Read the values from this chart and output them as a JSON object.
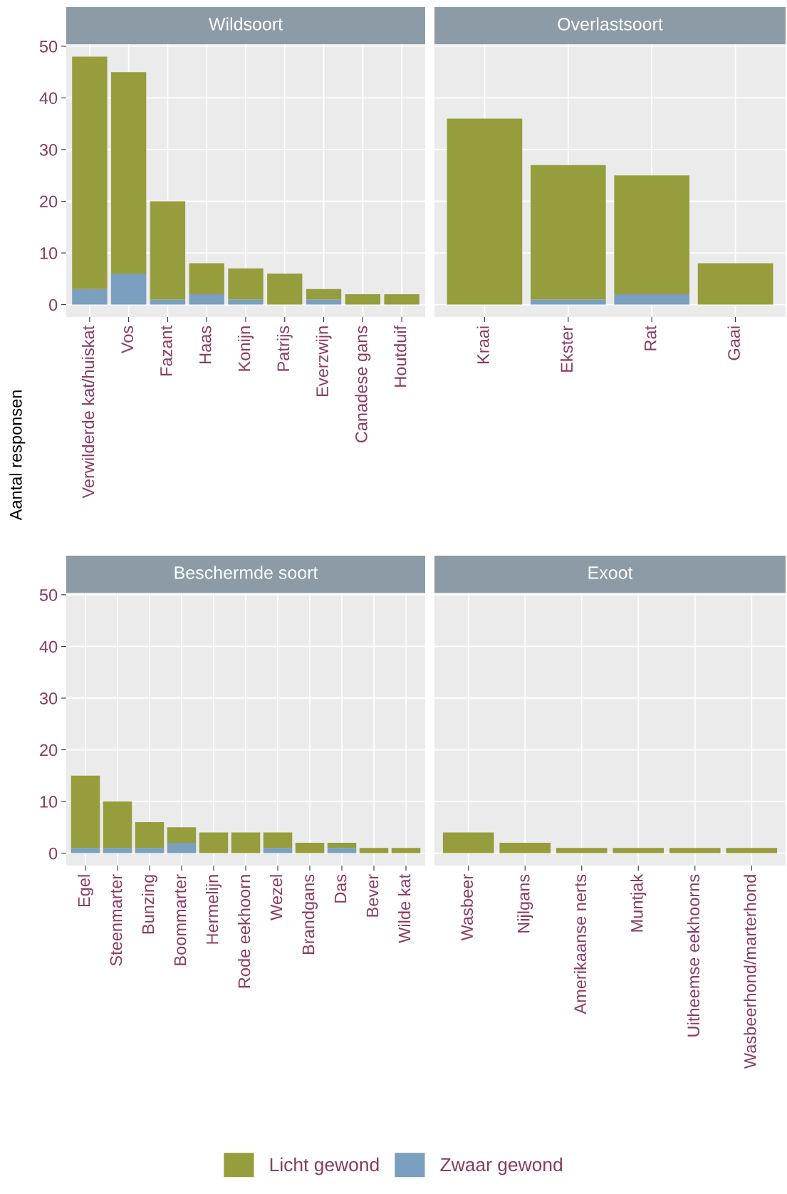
{
  "chart_data": [
    {
      "type": "bar",
      "title": "Wildsoort",
      "ylabel": "Aantal responsen",
      "legend": "bottom",
      "stacked": true,
      "grid": true,
      "tick_labels": "xy",
      "ylim": [
        -2.4,
        50.4
      ],
      "yticks": [
        0,
        10,
        20,
        30,
        40,
        50
      ],
      "categories": [
        "Verwilderde kat/huiskat",
        "Vos",
        "Fazant",
        "Haas",
        "Konijn",
        "Patrijs",
        "Everzwijn",
        "Canadese gans",
        "Houtduif"
      ],
      "series": [
        {
          "name": "Zwaar gewond",
          "color": "#7a9fbf",
          "values": [
            3,
            6,
            1,
            2,
            1,
            0,
            1,
            0,
            0
          ]
        },
        {
          "name": "Licht gewond",
          "color": "#969d3c",
          "values": [
            45,
            39,
            19,
            6,
            6,
            6,
            2,
            2,
            2
          ]
        }
      ]
    },
    {
      "type": "bar",
      "title": "Overlastsoort",
      "stacked": true,
      "grid": true,
      "tick_labels": "x",
      "ylim": [
        -2.4,
        50.4
      ],
      "yticks": [
        0,
        10,
        20,
        30,
        40,
        50
      ],
      "categories": [
        "Kraai",
        "Ekster",
        "Rat",
        "Gaai"
      ],
      "series": [
        {
          "color": "#7a9fbf",
          "values": [
            0,
            1,
            2,
            0
          ]
        },
        {
          "color": "#969d3c",
          "values": [
            36,
            26,
            23,
            8
          ]
        }
      ]
    },
    {
      "type": "bar",
      "title": "Beschermde soort",
      "stacked": true,
      "grid": true,
      "tick_labels": "xy",
      "ylim": [
        -2.4,
        50.4
      ],
      "yticks": [
        0,
        10,
        20,
        30,
        40,
        50
      ],
      "categories": [
        "Egel",
        "Steenmarter",
        "Bunzing",
        "Boommarter",
        "Hermelijn",
        "Rode eekhoorn",
        "Wezel",
        "Brandgans",
        "Das",
        "Bever",
        "Wilde kat"
      ],
      "series": [
        {
          "color": "#7a9fbf",
          "values": [
            1,
            1,
            1,
            2,
            0,
            0,
            1,
            0,
            1,
            0,
            0
          ]
        },
        {
          "color": "#969d3c",
          "values": [
            14,
            9,
            5,
            3,
            4,
            4,
            3,
            2,
            1,
            1,
            1
          ]
        }
      ]
    },
    {
      "type": "bar",
      "title": "Exoot",
      "stacked": true,
      "grid": true,
      "tick_labels": "x",
      "ylim": [
        -2.4,
        50.4
      ],
      "yticks": [
        0,
        10,
        20,
        30,
        40,
        50
      ],
      "categories": [
        "Wasbeer",
        "Nijlgans",
        "Amerikaanse nerts",
        "Muntjak",
        "Uitheemse eekhoorns",
        "Wasbeerhond/marterhond"
      ],
      "series": [
        {
          "color": "#7a9fbf",
          "values": [
            0,
            0,
            0,
            0,
            0,
            0
          ]
        },
        {
          "color": "#969d3c",
          "values": [
            4,
            2,
            1,
            1,
            1,
            1
          ]
        }
      ]
    }
  ]
}
